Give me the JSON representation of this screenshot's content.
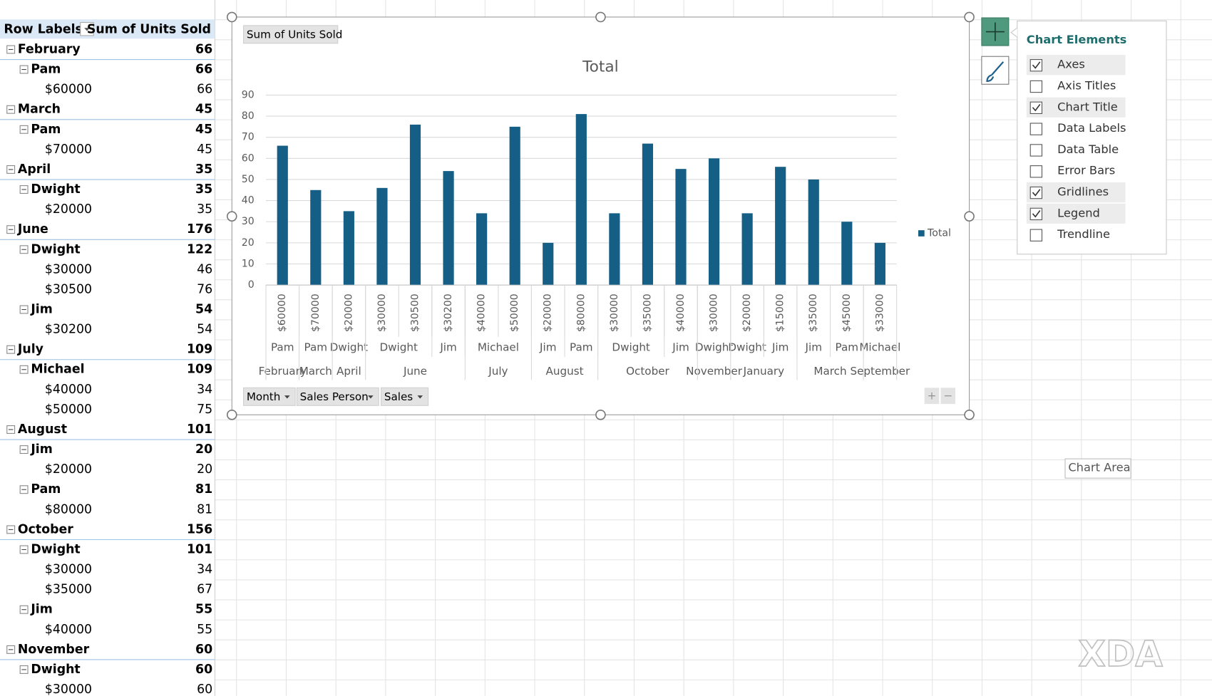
{
  "pivot": {
    "header": [
      "Row Labels",
      "Sum of Units Sold"
    ],
    "months": [
      {
        "label": "February",
        "value": 66,
        "persons": [
          {
            "label": "Pam",
            "value": 66,
            "sales": [
              {
                "label": "$60000",
                "value": 66
              }
            ]
          }
        ]
      },
      {
        "label": "March",
        "value": 45,
        "persons": [
          {
            "label": "Pam",
            "value": 45,
            "sales": [
              {
                "label": "$70000",
                "value": 45
              }
            ]
          }
        ]
      },
      {
        "label": "April",
        "value": 35,
        "persons": [
          {
            "label": "Dwight",
            "value": 35,
            "sales": [
              {
                "label": "$20000",
                "value": 35
              }
            ]
          }
        ]
      },
      {
        "label": "June",
        "value": 176,
        "persons": [
          {
            "label": "Dwight",
            "value": 122,
            "sales": [
              {
                "label": "$30000",
                "value": 46
              },
              {
                "label": "$30500",
                "value": 76
              }
            ]
          },
          {
            "label": "Jim",
            "value": 54,
            "sales": [
              {
                "label": "$30200",
                "value": 54
              }
            ]
          }
        ]
      },
      {
        "label": "July",
        "value": 109,
        "persons": [
          {
            "label": "Michael",
            "value": 109,
            "sales": [
              {
                "label": "$40000",
                "value": 34
              },
              {
                "label": "$50000",
                "value": 75
              }
            ]
          }
        ]
      },
      {
        "label": "August",
        "value": 101,
        "persons": [
          {
            "label": "Jim",
            "value": 20,
            "sales": [
              {
                "label": "$20000",
                "value": 20
              }
            ]
          },
          {
            "label": "Pam",
            "value": 81,
            "sales": [
              {
                "label": "$80000",
                "value": 81
              }
            ]
          }
        ]
      },
      {
        "label": "October",
        "value": 156,
        "persons": [
          {
            "label": "Dwight",
            "value": 101,
            "sales": [
              {
                "label": "$30000",
                "value": 34
              },
              {
                "label": "$35000",
                "value": 67
              }
            ]
          },
          {
            "label": "Jim",
            "value": 55,
            "sales": [
              {
                "label": "$40000",
                "value": 55
              }
            ]
          }
        ]
      },
      {
        "label": "November",
        "value": 60,
        "persons": [
          {
            "label": "Dwight",
            "value": 60,
            "sales": [
              {
                "label": "$30000",
                "value": 60
              }
            ]
          }
        ]
      }
    ]
  },
  "chart_data": {
    "type": "bar",
    "title": "Total",
    "category_tree": [
      {
        "label": "February",
        "children": [
          {
            "label": "Pam",
            "children": [
              "$60000"
            ]
          }
        ]
      },
      {
        "label": "March",
        "children": [
          {
            "label": "Pam",
            "children": [
              "$70000"
            ]
          }
        ]
      },
      {
        "label": "April",
        "children": [
          {
            "label": "Dwight",
            "children": [
              "$20000"
            ]
          }
        ]
      },
      {
        "label": "June",
        "children": [
          {
            "label": "Dwight",
            "children": [
              "$30000",
              "$30500"
            ]
          },
          {
            "label": "Jim",
            "children": [
              "$30200"
            ]
          }
        ]
      },
      {
        "label": "July",
        "children": [
          {
            "label": "Michael",
            "children": [
              "$40000",
              "$50000"
            ]
          }
        ]
      },
      {
        "label": "August",
        "children": [
          {
            "label": "Jim",
            "children": [
              "$20000"
            ]
          },
          {
            "label": "Pam",
            "children": [
              "$80000"
            ]
          }
        ]
      },
      {
        "label": "October",
        "children": [
          {
            "label": "Dwight",
            "children": [
              "$30000",
              "$35000"
            ]
          },
          {
            "label": "Jim",
            "children": [
              "$40000"
            ]
          }
        ]
      },
      {
        "label": "November",
        "children": [
          {
            "label": "Dwight",
            "children": [
              "$30000"
            ]
          }
        ]
      },
      {
        "label": "January",
        "children": [
          {
            "label": "Dwight",
            "children": [
              "$20000"
            ]
          },
          {
            "label": "Jim",
            "children": [
              "$15000"
            ]
          }
        ]
      },
      {
        "label": "March",
        "children": [
          {
            "label": "Jim",
            "children": [
              "$35000"
            ]
          },
          {
            "label": "Pam",
            "children": [
              "$45000"
            ]
          }
        ]
      },
      {
        "label": "September",
        "children": [
          {
            "label": "Michael",
            "children": [
              "$33000"
            ]
          }
        ]
      }
    ],
    "series": [
      {
        "name": "Total",
        "color": "#155e85",
        "values": [
          66,
          45,
          35,
          46,
          76,
          54,
          34,
          75,
          20,
          81,
          34,
          67,
          55,
          60,
          34,
          56,
          50,
          30,
          20
        ]
      }
    ],
    "ylim": [
      0,
      90
    ],
    "yticks": [
      0,
      10,
      20,
      30,
      40,
      50,
      60,
      70,
      80,
      90
    ],
    "grid": true,
    "legend": "right"
  },
  "chart_ui": {
    "values_button": "Sum of Units Sold",
    "axis_buttons": [
      "Month",
      "Sales Person",
      "Sales"
    ]
  },
  "chart_elements": {
    "title": "Chart Elements",
    "items": [
      {
        "label": "Axes",
        "checked": true
      },
      {
        "label": "Axis Titles",
        "checked": false
      },
      {
        "label": "Chart Title",
        "checked": true
      },
      {
        "label": "Data Labels",
        "checked": false
      },
      {
        "label": "Data Table",
        "checked": false
      },
      {
        "label": "Error Bars",
        "checked": false
      },
      {
        "label": "Gridlines",
        "checked": true
      },
      {
        "label": "Legend",
        "checked": true
      },
      {
        "label": "Trendline",
        "checked": false
      }
    ]
  },
  "tooltip": "Chart Area",
  "watermark": "XDA"
}
